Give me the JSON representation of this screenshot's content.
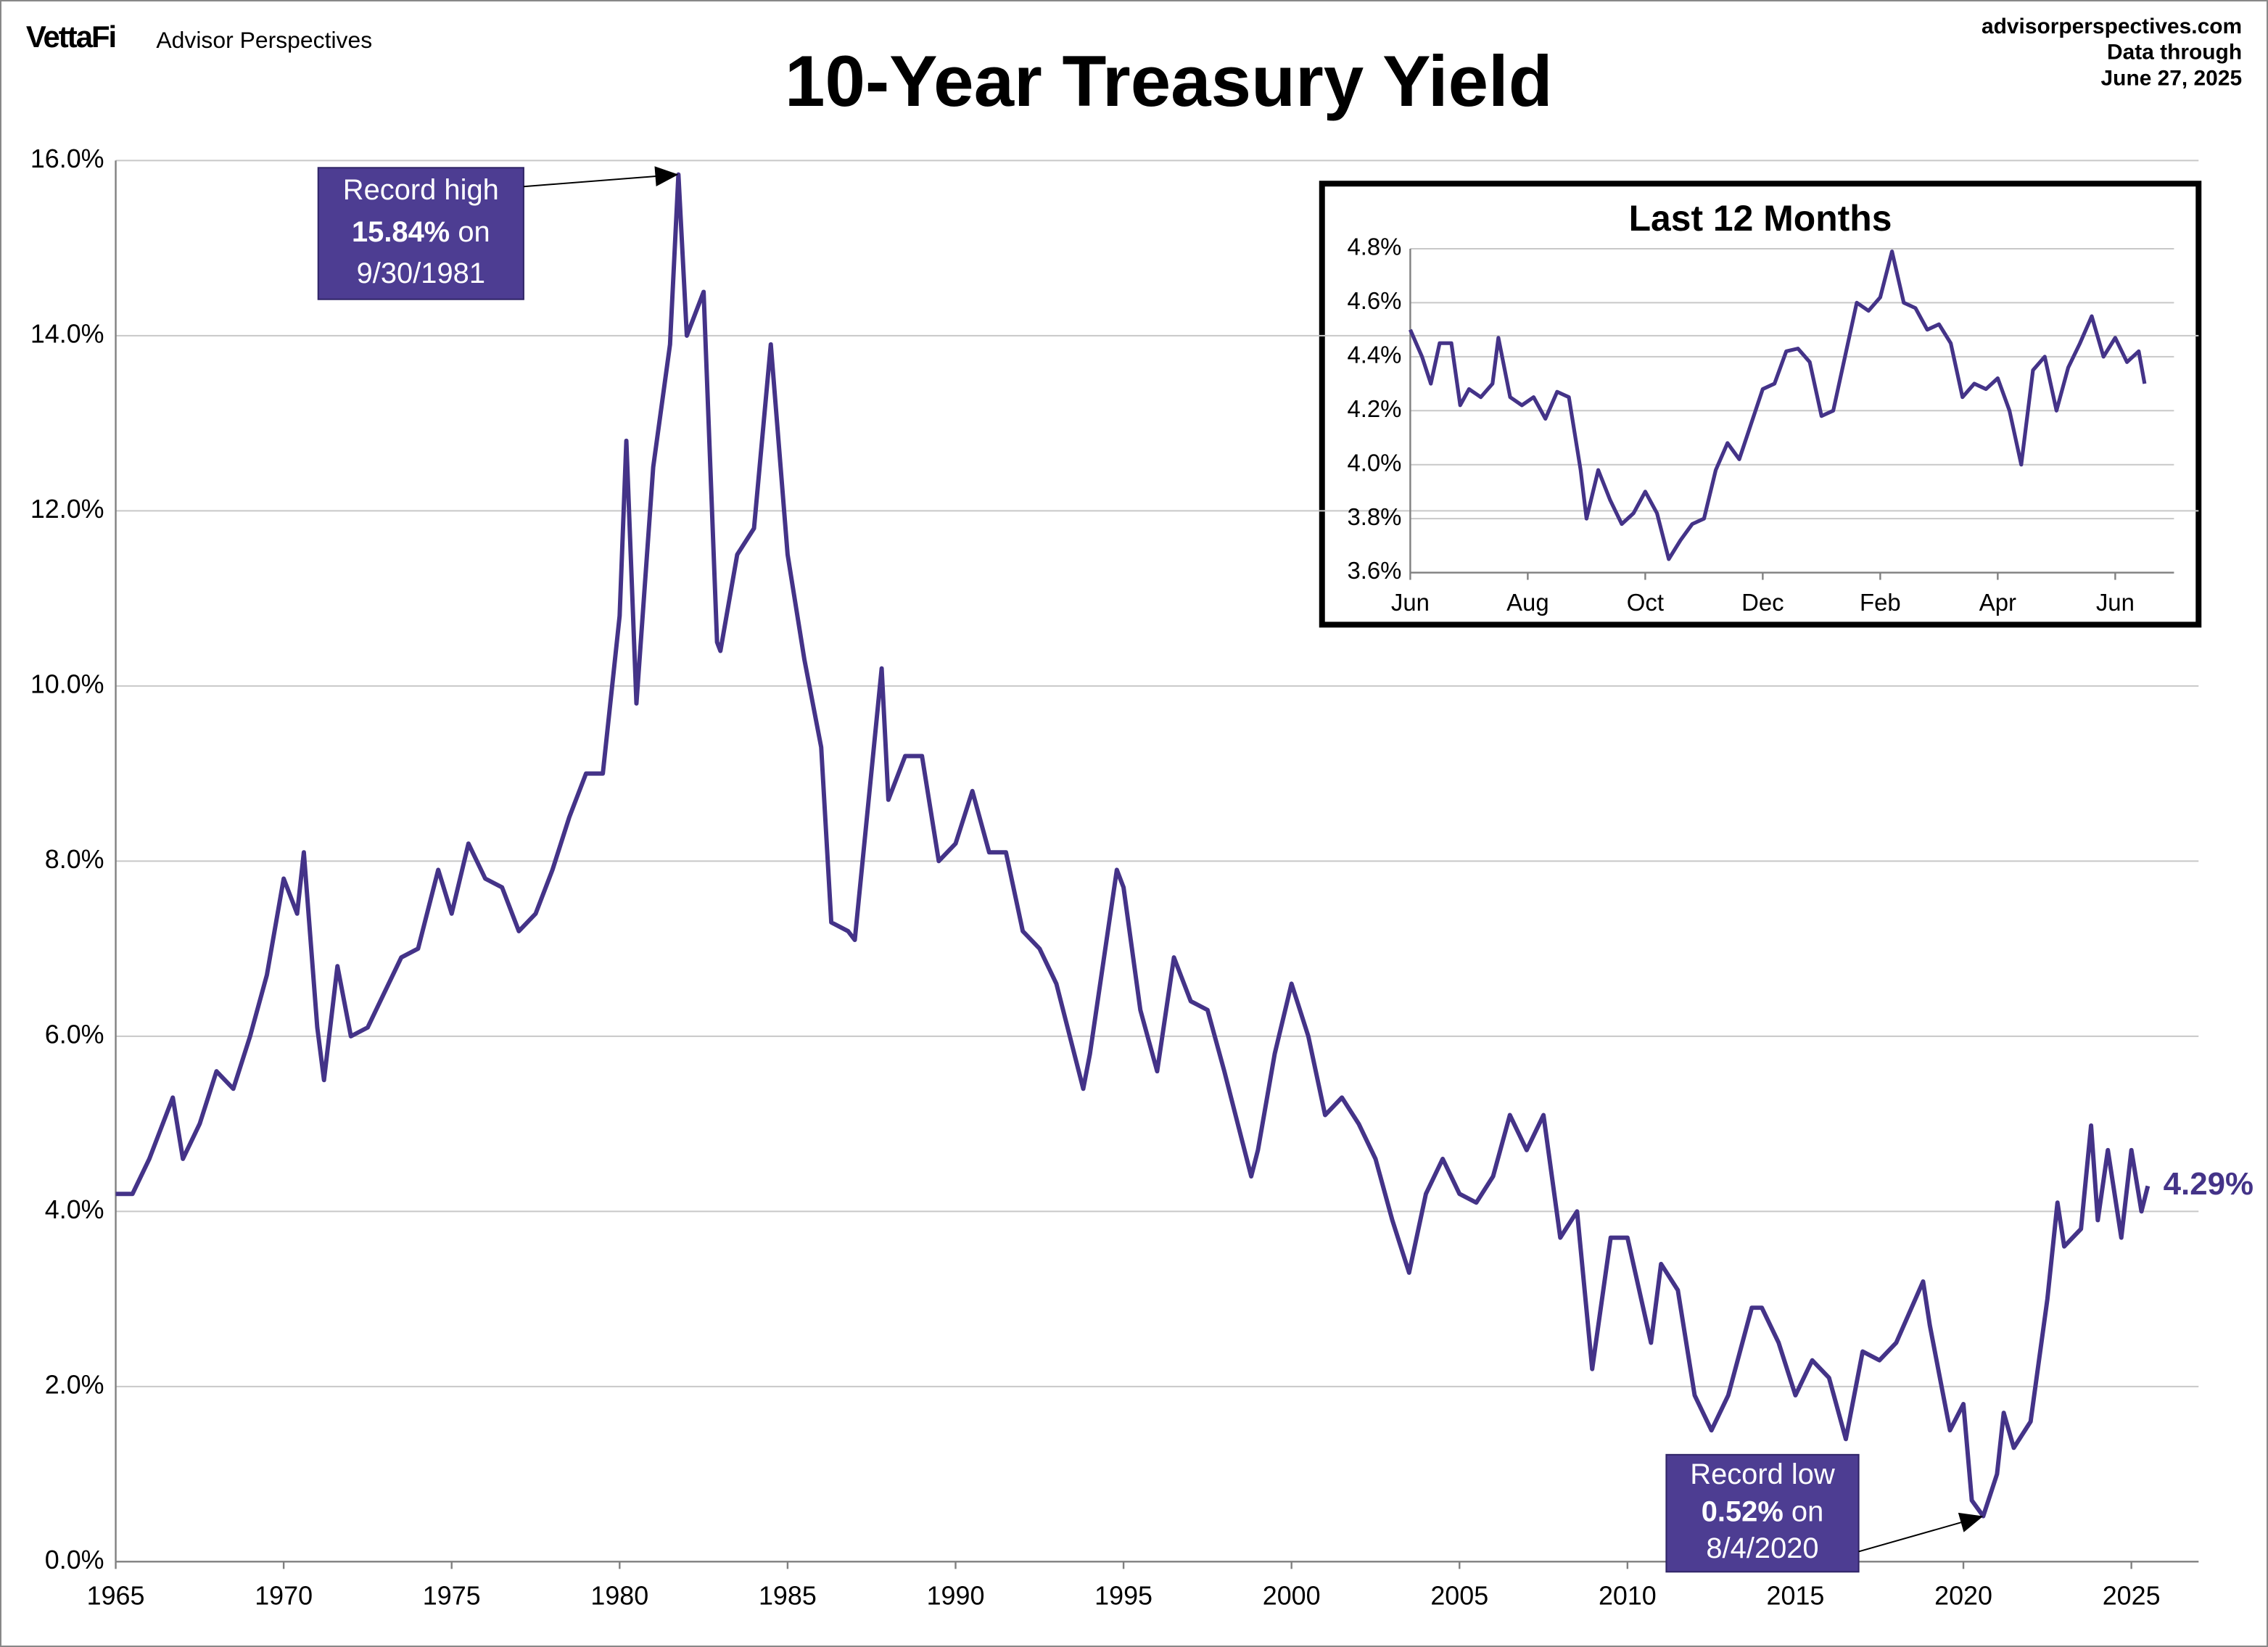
{
  "header": {
    "logo": "VettaFi",
    "brand": "Advisor Perspectives",
    "site": "advisorperspectives.com",
    "data_through": "Data through",
    "date": "June 27, 2025"
  },
  "chart_data": [
    {
      "type": "line",
      "title": "10-Year Treasury Yield",
      "x": [
        1965.0,
        1965.5,
        1966.0,
        1966.7,
        1967.0,
        1967.5,
        1968.0,
        1968.5,
        1969.0,
        1969.5,
        1970.0,
        1970.4,
        1970.6,
        1971.0,
        1971.2,
        1971.6,
        1972.0,
        1972.5,
        1973.0,
        1973.5,
        1974.0,
        1974.6,
        1975.0,
        1975.5,
        1976.0,
        1976.5,
        1977.0,
        1977.5,
        1978.0,
        1978.5,
        1979.0,
        1979.5,
        1980.0,
        1980.2,
        1980.5,
        1981.0,
        1981.5,
        1981.75,
        1982.0,
        1982.5,
        1982.9,
        1983.0,
        1983.5,
        1984.0,
        1984.5,
        1985.0,
        1985.5,
        1986.0,
        1986.3,
        1986.8,
        1987.0,
        1987.8,
        1988.0,
        1988.5,
        1989.0,
        1989.5,
        1990.0,
        1990.5,
        1991.0,
        1991.5,
        1992.0,
        1992.5,
        1993.0,
        1993.8,
        1994.0,
        1994.8,
        1995.0,
        1995.5,
        1996.0,
        1996.5,
        1997.0,
        1997.5,
        1998.0,
        1998.8,
        1999.0,
        1999.5,
        2000.0,
        2000.5,
        2001.0,
        2001.5,
        2002.0,
        2002.5,
        2003.0,
        2003.5,
        2004.0,
        2004.5,
        2005.0,
        2005.5,
        2006.0,
        2006.5,
        2007.0,
        2007.5,
        2008.0,
        2008.5,
        2008.95,
        2009.5,
        2010.0,
        2010.7,
        2011.0,
        2011.5,
        2012.0,
        2012.5,
        2013.0,
        2013.7,
        2014.0,
        2014.5,
        2015.0,
        2015.5,
        2016.0,
        2016.5,
        2017.0,
        2017.5,
        2018.0,
        2018.8,
        2019.0,
        2019.6,
        2020.0,
        2020.25,
        2020.59,
        2021.0,
        2021.2,
        2021.5,
        2022.0,
        2022.5,
        2022.8,
        2023.0,
        2023.5,
        2023.8,
        2024.0,
        2024.3,
        2024.7,
        2025.0,
        2025.3,
        2025.49
      ],
      "series": [
        {
          "name": "10-Year Treasury Yield",
          "color": "#443388",
          "values": [
            4.2,
            4.2,
            4.6,
            5.3,
            4.6,
            5.0,
            5.6,
            5.4,
            6.0,
            6.7,
            7.8,
            7.4,
            8.1,
            6.1,
            5.5,
            6.8,
            6.0,
            6.1,
            6.5,
            6.9,
            7.0,
            7.9,
            7.4,
            8.2,
            7.8,
            7.7,
            7.2,
            7.4,
            7.9,
            8.5,
            9.0,
            9.0,
            10.8,
            12.8,
            9.8,
            12.5,
            13.9,
            15.84,
            14.0,
            14.5,
            10.5,
            10.4,
            11.5,
            11.8,
            13.9,
            11.5,
            10.3,
            9.3,
            7.3,
            7.2,
            7.1,
            10.2,
            8.7,
            9.2,
            9.2,
            8.0,
            8.2,
            8.8,
            8.1,
            8.1,
            7.2,
            7.0,
            6.6,
            5.4,
            5.8,
            7.9,
            7.7,
            6.3,
            5.6,
            6.9,
            6.4,
            6.3,
            5.6,
            4.4,
            4.7,
            5.8,
            6.6,
            6.0,
            5.1,
            5.3,
            5.0,
            4.6,
            3.9,
            3.3,
            4.2,
            4.6,
            4.2,
            4.1,
            4.4,
            5.1,
            4.7,
            5.1,
            3.7,
            4.0,
            2.2,
            3.7,
            3.7,
            2.5,
            3.4,
            3.1,
            1.9,
            1.5,
            1.9,
            2.9,
            2.9,
            2.5,
            1.9,
            2.3,
            2.1,
            1.4,
            2.4,
            2.3,
            2.5,
            3.2,
            2.7,
            1.5,
            1.8,
            0.7,
            0.52,
            1.0,
            1.7,
            1.3,
            1.6,
            3.0,
            4.1,
            3.6,
            3.8,
            4.98,
            3.9,
            4.7,
            3.7,
            4.7,
            4.0,
            4.29
          ]
        }
      ],
      "xlim": [
        1965,
        2027
      ],
      "xticks": [
        1965,
        1970,
        1975,
        1980,
        1985,
        1990,
        1995,
        2000,
        2005,
        2010,
        2015,
        2020,
        2025
      ],
      "ylim": [
        0,
        16
      ],
      "yticks": [
        {
          "value": 0,
          "label": "0.0%"
        },
        {
          "value": 2,
          "label": "2.0%"
        },
        {
          "value": 4,
          "label": "4.0%"
        },
        {
          "value": 6,
          "label": "6.0%"
        },
        {
          "value": 8,
          "label": "8.0%"
        },
        {
          "value": 10,
          "label": "10.0%"
        },
        {
          "value": 12,
          "label": "12.0%"
        },
        {
          "value": 14,
          "label": "14.0%"
        },
        {
          "value": 16,
          "label": "16.0%"
        }
      ],
      "grid": true,
      "end_label": {
        "value": 4.29,
        "label": "4.29%"
      },
      "annotations": [
        {
          "text": "Record high",
          "value_text": "15.84%",
          "suffix": " on",
          "date": "9/30/1981",
          "x": 1981.75,
          "y": 15.84
        },
        {
          "text": "Record low",
          "value_text": "0.52%",
          "suffix": " on",
          "date": "8/4/2020",
          "x": 2020.59,
          "y": 0.52
        }
      ]
    },
    {
      "type": "line",
      "title": "Last 12 Months",
      "x": [
        0,
        0.2,
        0.35,
        0.5,
        0.7,
        0.85,
        1.0,
        1.2,
        1.4,
        1.5,
        1.7,
        1.9,
        2.1,
        2.3,
        2.5,
        2.7,
        2.9,
        3.0,
        3.2,
        3.4,
        3.6,
        3.8,
        4.0,
        4.2,
        4.4,
        4.6,
        4.8,
        5.0,
        5.2,
        5.4,
        5.6,
        5.8,
        6.0,
        6.2,
        6.4,
        6.6,
        6.8,
        7.0,
        7.2,
        7.4,
        7.6,
        7.8,
        8.0,
        8.2,
        8.4,
        8.6,
        8.8,
        9.0,
        9.2,
        9.4,
        9.6,
        9.8,
        10.0,
        10.2,
        10.4,
        10.6,
        10.8,
        11.0,
        11.2,
        11.4,
        11.6,
        11.8,
        12.0,
        12.2,
        12.4,
        12.5
      ],
      "series": [
        {
          "name": "Last 12 Months",
          "color": "#443388",
          "values": [
            4.5,
            4.4,
            4.3,
            4.45,
            4.45,
            4.22,
            4.28,
            4.25,
            4.3,
            4.47,
            4.25,
            4.22,
            4.25,
            4.17,
            4.27,
            4.25,
            3.98,
            3.8,
            3.98,
            3.87,
            3.78,
            3.82,
            3.9,
            3.82,
            3.65,
            3.72,
            3.78,
            3.8,
            3.98,
            4.08,
            4.02,
            4.15,
            4.28,
            4.3,
            4.42,
            4.43,
            4.38,
            4.18,
            4.2,
            4.4,
            4.6,
            4.57,
            4.62,
            4.79,
            4.6,
            4.58,
            4.5,
            4.52,
            4.45,
            4.25,
            4.3,
            4.28,
            4.32,
            4.2,
            4.0,
            4.35,
            4.4,
            4.2,
            4.36,
            4.45,
            4.55,
            4.4,
            4.47,
            4.38,
            4.42,
            4.3
          ]
        }
      ],
      "xlim": [
        0,
        13
      ],
      "xticks": [
        {
          "value": 0,
          "label": "Jun"
        },
        {
          "value": 2,
          "label": "Aug"
        },
        {
          "value": 4,
          "label": "Oct"
        },
        {
          "value": 6,
          "label": "Dec"
        },
        {
          "value": 8,
          "label": "Feb"
        },
        {
          "value": 10,
          "label": "Apr"
        },
        {
          "value": 12,
          "label": "Jun"
        }
      ],
      "ylim": [
        3.6,
        4.8
      ],
      "yticks": [
        {
          "value": 3.6,
          "label": "3.6%"
        },
        {
          "value": 3.8,
          "label": "3.8%"
        },
        {
          "value": 4.0,
          "label": "4.0%"
        },
        {
          "value": 4.2,
          "label": "4.2%"
        },
        {
          "value": 4.4,
          "label": "4.4%"
        },
        {
          "value": 4.6,
          "label": "4.6%"
        },
        {
          "value": 4.8,
          "label": "4.8%"
        }
      ],
      "grid": true
    }
  ]
}
